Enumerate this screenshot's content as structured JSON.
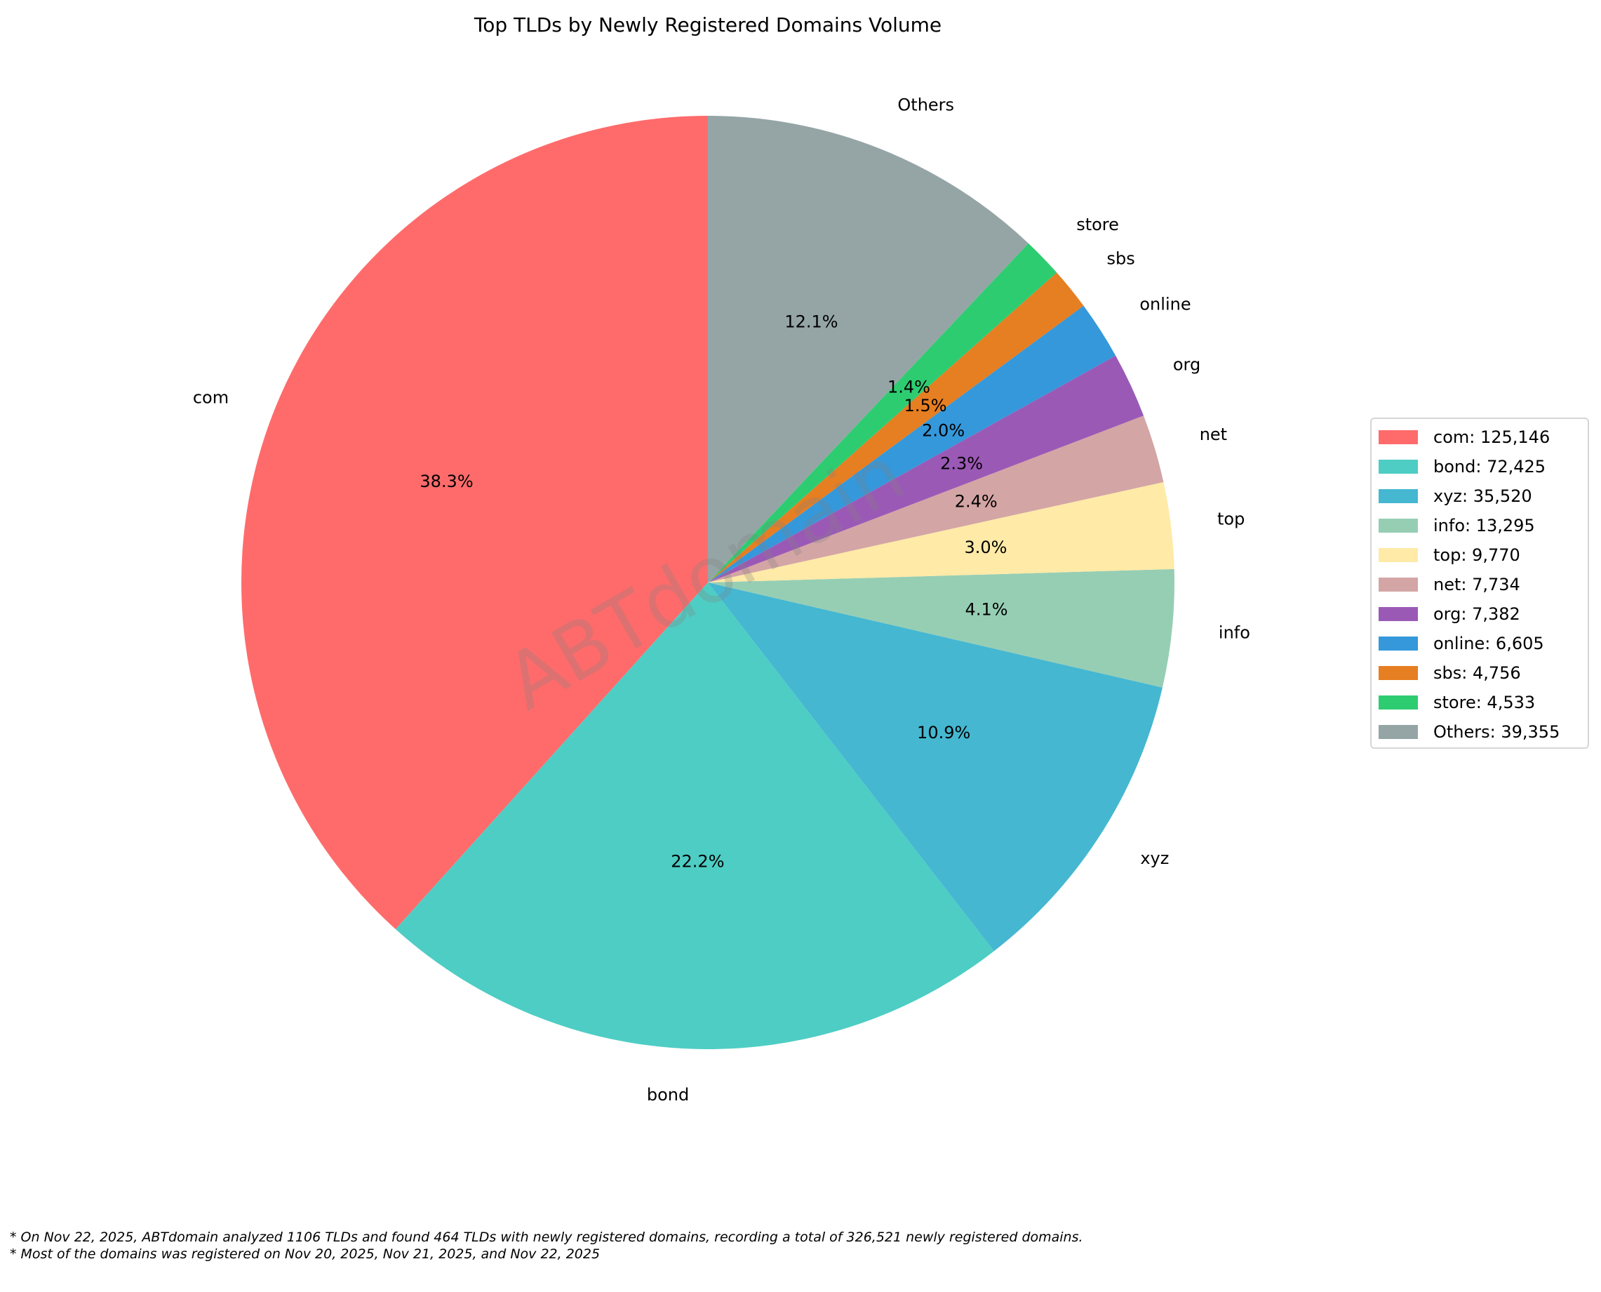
{
  "chart_data": {
    "type": "pie",
    "title": "Top TLDs by Newly Registered Domains Volume",
    "start_angle_deg": 90,
    "direction": "counterclockwise",
    "legend_placement": "right",
    "watermark": "ABTdomain",
    "slices": [
      {
        "label": "com",
        "value": 125146,
        "pct": "38.3%",
        "legend": "com: 125,146",
        "color": "#ff6b6b"
      },
      {
        "label": "bond",
        "value": 72425,
        "pct": "22.2%",
        "legend": "bond: 72,425",
        "color": "#4ecdc4"
      },
      {
        "label": "xyz",
        "value": 35520,
        "pct": "10.9%",
        "legend": "xyz: 35,520",
        "color": "#45b7d1"
      },
      {
        "label": "info",
        "value": 13295,
        "pct": "4.1%",
        "legend": "info: 13,295",
        "color": "#96ceb4"
      },
      {
        "label": "top",
        "value": 9770,
        "pct": "3.0%",
        "legend": "top: 9,770",
        "color": "#ffeaa7"
      },
      {
        "label": "net",
        "value": 7734,
        "pct": "2.4%",
        "legend": "net: 7,734",
        "color": "#d4a5a5"
      },
      {
        "label": "org",
        "value": 7382,
        "pct": "2.3%",
        "legend": "org: 7,382",
        "color": "#9b59b6"
      },
      {
        "label": "online",
        "value": 6605,
        "pct": "2.0%",
        "legend": "online: 6,605",
        "color": "#3498db"
      },
      {
        "label": "sbs",
        "value": 4756,
        "pct": "1.5%",
        "legend": "sbs: 4,756",
        "color": "#e67e22"
      },
      {
        "label": "store",
        "value": 4533,
        "pct": "1.4%",
        "legend": "store: 4,533",
        "color": "#2ecc71"
      },
      {
        "label": "Others",
        "value": 39355,
        "pct": "12.1%",
        "legend": "Others: 39,355",
        "color": "#95a5a6"
      }
    ]
  },
  "footnotes": [
    "* On Nov 22, 2025, ABTdomain analyzed 1106 TLDs and found 464 TLDs with newly registered domains, recording a total of 326,521 newly registered domains.",
    "* Most of the domains was registered on Nov 20, 2025, Nov 21, 2025, and Nov 22, 2025"
  ]
}
